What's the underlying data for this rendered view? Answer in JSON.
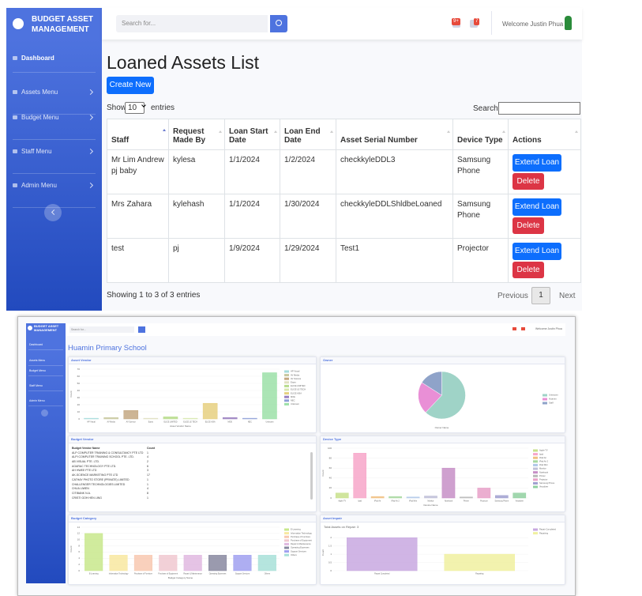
{
  "sidebar": {
    "brand": "BUDGET ASSET MANAGEMENT",
    "items": [
      "Dashboard",
      "Assets Menu",
      "Budget Menu",
      "Staff Menu",
      "Admin Menu"
    ]
  },
  "topbar": {
    "search_placeholder": "Search for...",
    "alerts_badge": "9+",
    "messages_badge": "7",
    "welcome": "Welcome Justin Phua"
  },
  "page": {
    "title": "Loaned Assets List",
    "create_button": "Create New",
    "show": "Show",
    "page_length": "10",
    "entries": "entries",
    "search_label": "Search:"
  },
  "table": {
    "columns": [
      "Staff",
      "Request Made By",
      "Loan Start Date",
      "Loan End Date",
      "Asset Serial Number",
      "Device Type",
      "Actions"
    ],
    "rows": [
      [
        "Mr Lim Andrew pj baby",
        "kylesa",
        "1/1/2024",
        "1/2/2024",
        "checkkyleDDL3",
        "Samsung Phone"
      ],
      [
        "Mrs Zahara",
        "kylehash",
        "1/1/2024",
        "1/30/2024",
        "checkkyleDDLShldbeLoaned",
        "Samsung Phone"
      ],
      [
        "test",
        "pj",
        "1/9/2024",
        "1/29/2024",
        "Test1",
        "Projector"
      ]
    ],
    "actions": [
      "Extend Loan",
      "Delete"
    ]
  },
  "footer": {
    "info": "Showing 1 to 3 of 3 entries",
    "previous": "Previous",
    "current_page": "1",
    "next": "Next"
  },
  "dashboard": {
    "brand": "BUDGET ASSET MANAGEMENT",
    "sidebar_items": [
      "Dashboard",
      "Assets Menu",
      "Budget Menu",
      "Staff Menu",
      "Admin Menu"
    ],
    "search_placeholder": "Search for...",
    "welcome": "Welcome Justin Phua",
    "title": "Huamin Primary School",
    "vendor_table": {
      "title": "Budget Vendor",
      "columns": [
        "Budget Vendor Name",
        "Count"
      ],
      "rows": [
        [
          "ALP COMPUTER TRAINING & CONSULTANCY PTE LTD",
          1
        ],
        [
          "ALPI COMPUTER TRAINING SCHOOL PTE. LTD.",
          4
        ],
        [
          "AB VISUAL PTE. LTD.",
          2
        ],
        [
          "AGARAC TECHNOLOGY PTE LTD.",
          6
        ],
        [
          "AH HWEE PTE LTD",
          3
        ],
        [
          "AK-SCIENCE MARKETING PTE LTD",
          17
        ],
        [
          "CATHAY PHOTO STORE (PRIVATE) LIMITED",
          1
        ],
        [
          "CHALLENGER TECHNOLOGIES LIMITED",
          1
        ],
        [
          "CHUA LIWEN",
          4
        ],
        [
          "CITIBANK N.A.",
          8
        ],
        [
          "CRISTI GOH HEN LING",
          1
        ]
      ]
    }
  },
  "chart_data": [
    {
      "type": "bar",
      "title": "Asset Vendor",
      "x_label": "Asset Vendor Name",
      "y_label": "Count",
      "categories": [
        "HP Visual",
        "AV Media",
        "AV Science",
        "Ezpro",
        "ELICE LIMITED",
        "ELICE LE TECH",
        "ELICE ASIA",
        "MOE",
        "NEC",
        "Unknown"
      ],
      "values": [
        1,
        2,
        12,
        1,
        3,
        1,
        22,
        2,
        1,
        65
      ],
      "colors": [
        "#a6dcdc",
        "#c8c8a0",
        "#c4a882",
        "#e0e0c0",
        "#b8dc8c",
        "#d8e8b0",
        "#e6d080",
        "#9a80c0",
        "#8fa0d8",
        "#9ce0a8"
      ],
      "ylim": [
        0,
        70
      ],
      "yticks": [
        0,
        10,
        20,
        30,
        40,
        50,
        60,
        70
      ]
    },
    {
      "type": "pie",
      "title": "Owner",
      "x_label": "Owner Name",
      "categories": [
        "Unknown",
        "Huamin",
        "Staff"
      ],
      "values": [
        62,
        22,
        16
      ],
      "colors": [
        "#9fd3c7",
        "#e98fd6",
        "#8fa3c9"
      ]
    },
    {
      "type": "bar",
      "title": "Device Type",
      "x_label": "Device Name",
      "y_label": "Count",
      "categories": [
        "Apple TV",
        "Ipad",
        "iPad Air",
        "iPad Air 2",
        "iPad Mini",
        "Monitor",
        "Notebook",
        "Printer",
        "Projector",
        "Samsung Phone",
        "Visualizer"
      ],
      "values": [
        10,
        90,
        3,
        3,
        2,
        4,
        60,
        2,
        20,
        5,
        10
      ],
      "colors": [
        "#c8e08c",
        "#f7a6c9",
        "#f0c080",
        "#a8d8a0",
        "#b0c8e8",
        "#c0c0d8",
        "#c78fc7",
        "#b8b8b8",
        "#e8a0c8",
        "#a0a0d0",
        "#90d0a0"
      ],
      "ylim": [
        0,
        100
      ],
      "yticks": [
        0,
        20,
        40,
        60,
        80,
        100
      ]
    },
    {
      "type": "bar",
      "title": "Budget Category",
      "x_label": "Budget Category Name",
      "y_label": "Count",
      "categories": [
        "E-Learning",
        "Information Technology",
        "Purchase of Furniture",
        "Purchase of Equipment",
        "Repair & Maintenance",
        "Operating Expenses",
        "Support Services",
        "Others"
      ],
      "values": [
        12,
        5,
        5,
        5,
        5,
        5,
        5,
        5
      ],
      "colors": [
        "#c8e88c",
        "#f8e8a0",
        "#f8c8b0",
        "#f0c8d0",
        "#e0b8e0",
        "#8888a0",
        "#a0a0f0",
        "#a8e0d8"
      ],
      "ylim": [
        0,
        14
      ],
      "yticks": [
        0,
        2,
        4,
        6,
        8,
        10,
        12,
        14
      ]
    },
    {
      "type": "bar",
      "title": "Asset Impair",
      "subtitle": "Total Assets on Repair: 3",
      "y_label": "Count",
      "categories": [
        "Repair Completed",
        "Repairing"
      ],
      "values": [
        2,
        1
      ],
      "colors": [
        "#c8a8e0",
        "#f0f0a0"
      ],
      "ylim": [
        0,
        2.2
      ],
      "yticks": [
        0,
        0.5,
        1,
        1.5,
        2
      ]
    }
  ]
}
